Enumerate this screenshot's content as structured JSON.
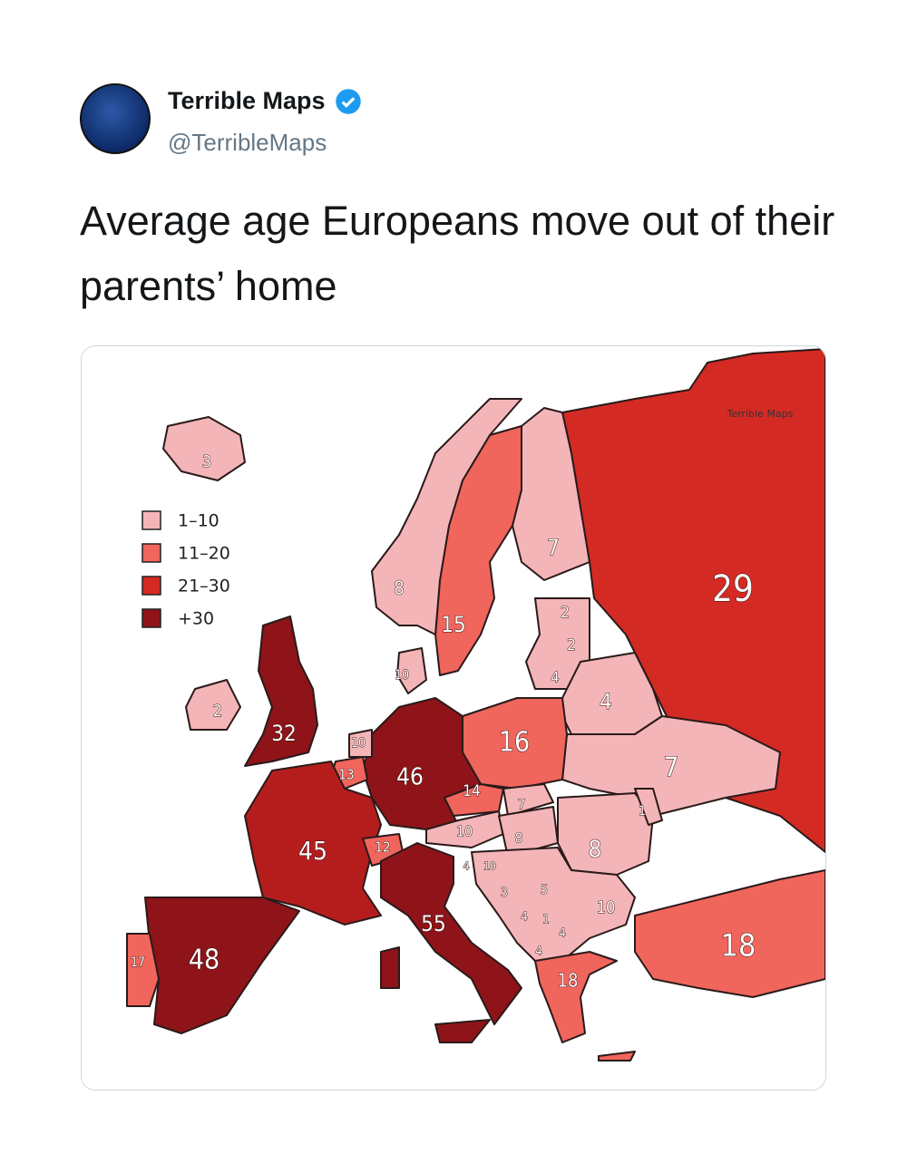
{
  "tweet": {
    "name": "Terrible Maps",
    "handle": "@TerribleMaps",
    "text": "Average age Europeans move out of their parents’ home"
  },
  "map": {
    "watermark": "Terrible Maps",
    "legend": [
      "1–10",
      "11–20",
      "21–30",
      "+30"
    ],
    "labels": [
      "3",
      "8",
      "15",
      "7",
      "29",
      "2",
      "2",
      "4",
      "4",
      "10",
      "2",
      "32",
      "10",
      "13",
      "46",
      "16",
      "7",
      "14",
      "7",
      "10",
      "8",
      "12",
      "4",
      "10",
      "8",
      "1",
      "45",
      "3",
      "5",
      "4",
      "1",
      "4",
      "10",
      "55",
      "4",
      "18",
      "18",
      "48",
      "17"
    ]
  }
}
